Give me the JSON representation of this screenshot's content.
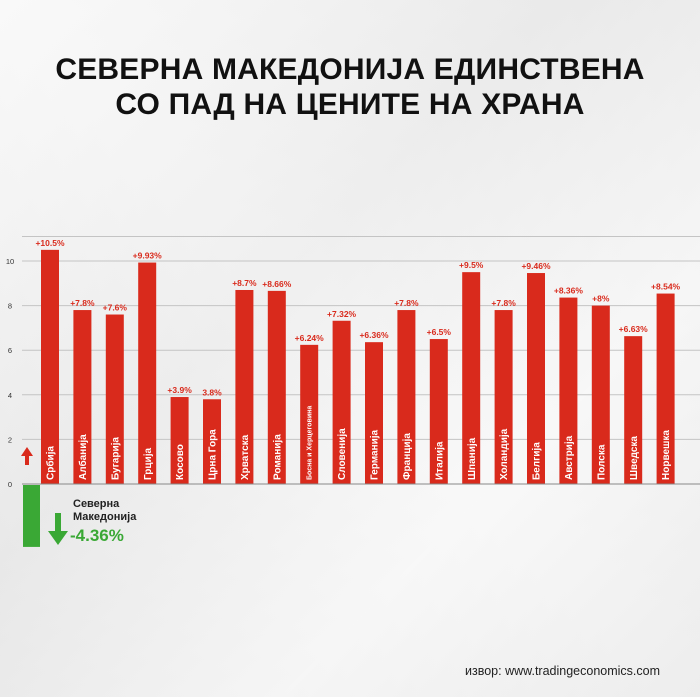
{
  "title": {
    "line1": "СЕВЕРНА МАКЕДОНИЈА ЕДИНСТВЕНА",
    "line2": "СО ПАД НА ЦЕНИТЕ НА ХРАНА"
  },
  "source": "извор: www.tradingeconomics.com",
  "colors": {
    "positive": "#d92a1c",
    "negative": "#3aa835",
    "grid": "#c4c4c4"
  },
  "chart_data": {
    "type": "bar",
    "ylim": [
      0,
      10
    ],
    "yticks": [
      "0",
      "2",
      "4",
      "6",
      "8",
      "10"
    ],
    "grid": true,
    "categories": [
      "Србија",
      "Албанија",
      "Бугарија",
      "Грција",
      "Косово",
      "Црна Гора",
      "Хрватска",
      "Романија",
      "Босна и Херцеговина",
      "Словенија",
      "Германија",
      "Франција",
      "Италија",
      "Шпанија",
      "Холандија",
      "Белгија",
      "Австрија",
      "Полска",
      "Шведска",
      "Норвешка"
    ],
    "values": [
      10.5,
      7.8,
      7.6,
      9.93,
      3.9,
      3.8,
      8.7,
      8.66,
      6.24,
      7.32,
      6.36,
      7.8,
      6.5,
      9.5,
      7.8,
      9.46,
      8.36,
      8,
      6.63,
      8.54
    ],
    "labels": [
      "+10.5%",
      "+7.8%",
      "+7.6%",
      "+9.93%",
      "+3.9%",
      "3.8%",
      "+8.7%",
      "+8.66%",
      "+6.24%",
      "+7.32%",
      "+6.36%",
      "+7.8%",
      "+6.5%",
      "+9.5%",
      "+7.8%",
      "+9.46%",
      "+8.36%",
      "+8%",
      "+6.63%",
      "+8.54%"
    ],
    "negative": {
      "category_line1": "Северна",
      "category_line2": "Македонија",
      "value": -4.36,
      "label": "-4.36%"
    }
  }
}
